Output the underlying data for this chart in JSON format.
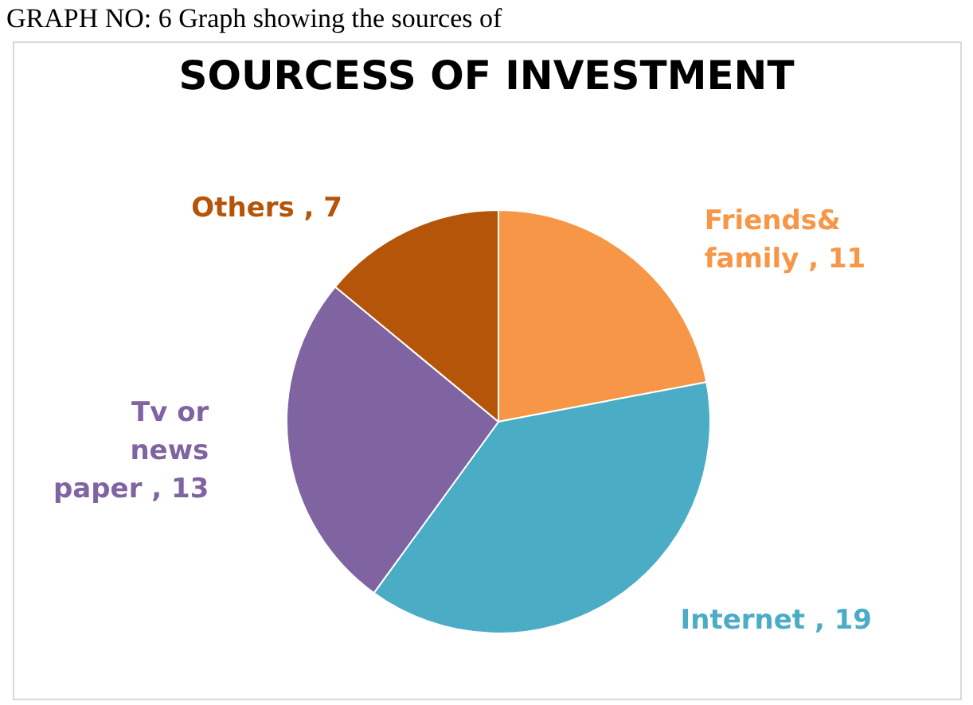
{
  "chart_data": {
    "type": "pie",
    "title": "SOURCESS OF INVESTMENT",
    "annotations": [
      "GRAPH NO: 6 Graph showing the sources of"
    ],
    "categories": [
      "Friends& family",
      "Internet",
      "Tv or news paper",
      "Others"
    ],
    "values": [
      11,
      19,
      13,
      7
    ],
    "colors": [
      "#f79646",
      "#4bacc6",
      "#8064a2",
      "#b45509"
    ],
    "value_labels": [
      "11",
      "19",
      "13",
      "7"
    ],
    "legend": false
  }
}
